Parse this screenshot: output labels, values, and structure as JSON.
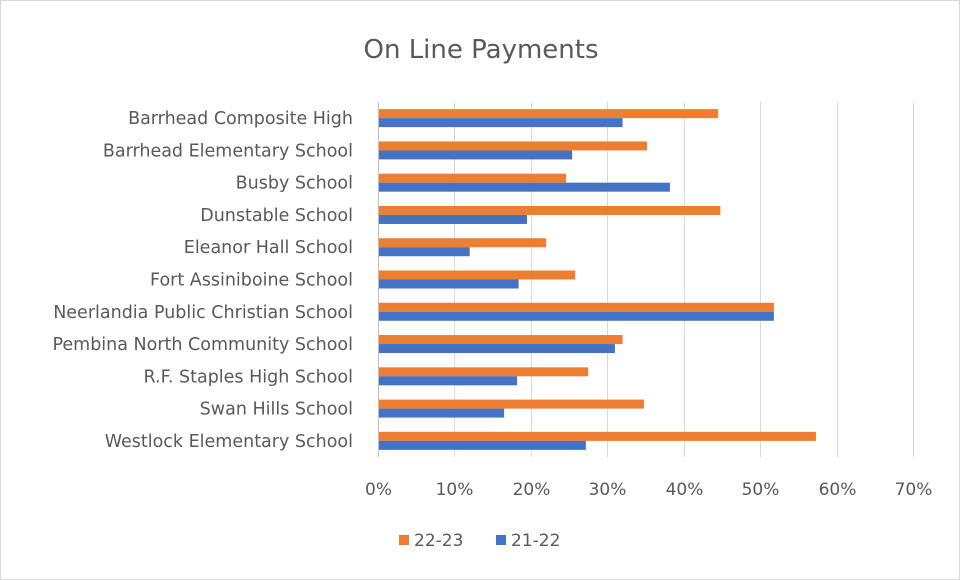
{
  "chart_data": {
    "type": "bar",
    "orientation": "horizontal",
    "title": "On Line Payments",
    "categories": [
      "Barrhead Composite High",
      "Barrhead Elementary School",
      "Busby School",
      "Dunstable School",
      "Eleanor Hall School",
      "Fort Assiniboine School",
      "Neerlandia Public Christian School",
      "Pembina North Community School",
      "R.F. Staples High School",
      "Swan Hills School",
      "Westlock Elementary School"
    ],
    "series": [
      {
        "name": "22-23",
        "color": "#ed7d31",
        "values": [
          0.445,
          0.352,
          0.246,
          0.448,
          0.22,
          0.258,
          0.518,
          0.32,
          0.275,
          0.348,
          0.573
        ]
      },
      {
        "name": "21-22",
        "color": "#4472c4",
        "values": [
          0.32,
          0.254,
          0.382,
          0.195,
          0.12,
          0.184,
          0.518,
          0.31,
          0.182,
          0.165,
          0.272
        ]
      }
    ],
    "xlim": [
      0,
      0.7
    ],
    "xticks": [
      "0%",
      "10%",
      "20%",
      "30%",
      "40%",
      "50%",
      "60%",
      "70%"
    ],
    "grid": true,
    "legend_position": "bottom"
  }
}
